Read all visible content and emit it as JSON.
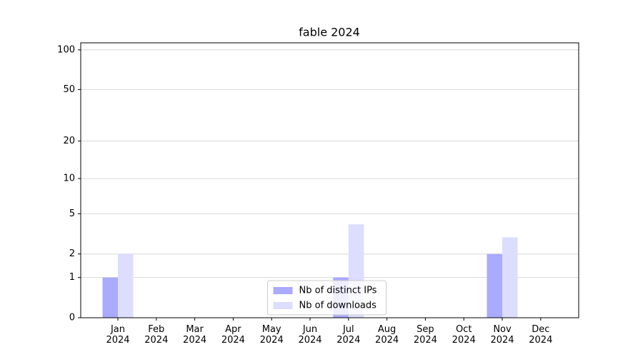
{
  "chart_data": {
    "type": "bar",
    "title": "fable 2024",
    "categories": [
      "Jan\n2024",
      "Feb\n2024",
      "Mar\n2024",
      "Apr\n2024",
      "May\n2024",
      "Jun\n2024",
      "Jul\n2024",
      "Aug\n2024",
      "Sep\n2024",
      "Oct\n2024",
      "Nov\n2024",
      "Dec\n2024"
    ],
    "series": [
      {
        "name": "Nb of distinct IPs",
        "color": "#aaaaff",
        "values": [
          1,
          0,
          0,
          0,
          0,
          0,
          1,
          0,
          0,
          0,
          2,
          0
        ]
      },
      {
        "name": "Nb of downloads",
        "color": "#ddddff",
        "values": [
          2,
          0,
          0,
          0,
          0,
          0,
          4,
          0,
          0,
          0,
          3,
          0
        ]
      }
    ],
    "scale": "log1p",
    "ylim": [
      0,
      113
    ],
    "yticks": [
      0,
      1,
      2,
      5,
      10,
      20,
      50,
      100
    ],
    "grid": true,
    "legend": "lower center"
  }
}
